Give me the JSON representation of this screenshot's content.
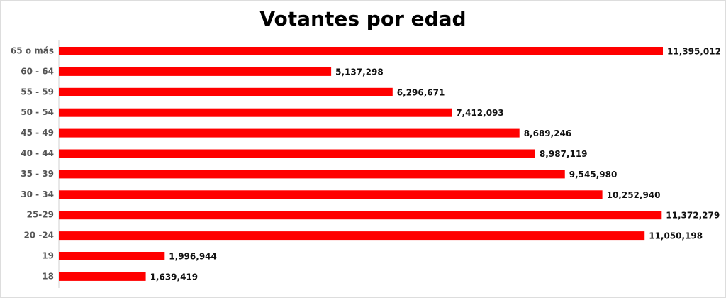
{
  "chart_data": {
    "type": "bar",
    "orientation": "horizontal",
    "title": "Votantes por edad",
    "categories": [
      "65 o más",
      "60 - 64",
      "55 - 59",
      "50 - 54",
      "45 - 49",
      "40 - 44",
      "35 - 39",
      "30 - 34",
      "25-29",
      "20 -24",
      "19",
      "18"
    ],
    "values": [
      11395012,
      5137298,
      6296671,
      7412093,
      8689246,
      8987119,
      9545980,
      10252940,
      11372279,
      11050198,
      1996944,
      1639419
    ],
    "value_labels": [
      "11,395,012",
      "5,137,298",
      "6,296,671",
      "7,412,093",
      "8,689,246",
      "8,987,119",
      "9,545,980",
      "10,252,940",
      "11,372,279",
      "11,050,198",
      "1,996,944",
      "1,639,419"
    ],
    "color": "#ff0000"
  }
}
